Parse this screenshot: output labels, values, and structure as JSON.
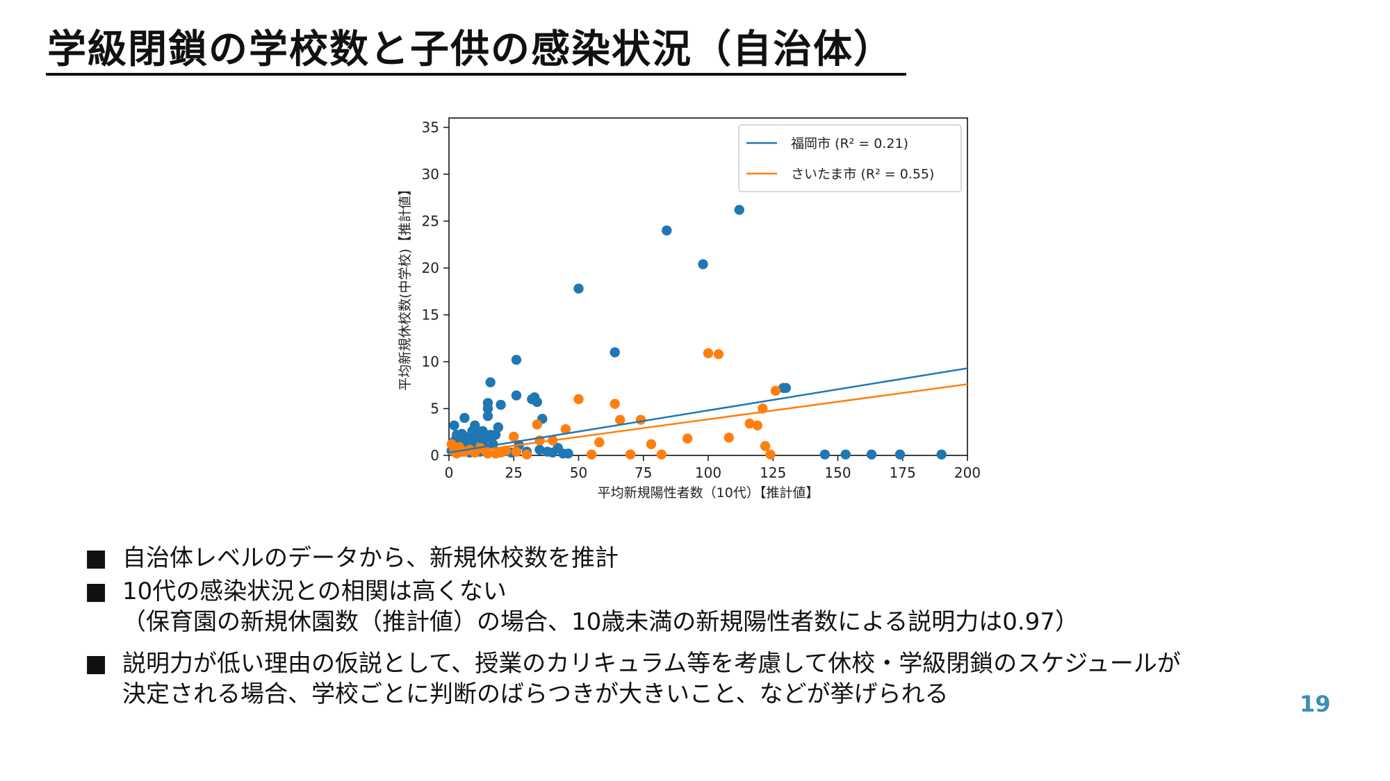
{
  "slide": {
    "title": "学級閉鎖の学校数と子供の感染状況（自治体）",
    "page_number": "19"
  },
  "colors": {
    "fukuoka": "#1f77b4",
    "saitama": "#ff7f0e",
    "accent_page_number": "#3a8fb7"
  },
  "chart_data": {
    "type": "scatter",
    "xlabel": "平均新規陽性者数（10代）【推計値】",
    "ylabel": "平均新規休校数(中学校)【推計値】",
    "xlim": [
      0,
      200
    ],
    "ylim": [
      0,
      36
    ],
    "xticks": [
      "0",
      "25",
      "50",
      "75",
      "100",
      "125",
      "150",
      "175",
      "200"
    ],
    "yticks": [
      "0",
      "5",
      "10",
      "15",
      "20",
      "25",
      "30",
      "35"
    ],
    "grid": false,
    "legend_position": "top-right",
    "legend_entries": [
      "福岡市 (R² = 0.21)",
      "さいたま市 (R² = 0.55)"
    ],
    "series": [
      {
        "name": "福岡市",
        "r2_text": "(R² = 0.21)",
        "points": [
          [
            1,
            0.5
          ],
          [
            2,
            1.5
          ],
          [
            2,
            3.2
          ],
          [
            3,
            2.2
          ],
          [
            3,
            0.8
          ],
          [
            4,
            1.2
          ],
          [
            5,
            2.3
          ],
          [
            5,
            0.4
          ],
          [
            6,
            4.0
          ],
          [
            6,
            1.8
          ],
          [
            7,
            1.0
          ],
          [
            8,
            2.0
          ],
          [
            8,
            0.3
          ],
          [
            9,
            2.6
          ],
          [
            9,
            1.2
          ],
          [
            10,
            3.2
          ],
          [
            10,
            0.6
          ],
          [
            11,
            1.9
          ],
          [
            12,
            2.3
          ],
          [
            12,
            0.4
          ],
          [
            13,
            2.6
          ],
          [
            13,
            1.3
          ],
          [
            14,
            1.8
          ],
          [
            14,
            0.8
          ],
          [
            15,
            4.2
          ],
          [
            15,
            5.0
          ],
          [
            15,
            5.6
          ],
          [
            16,
            7.8
          ],
          [
            16,
            2.2
          ],
          [
            17,
            1.2
          ],
          [
            18,
            2.2
          ],
          [
            19,
            3.0
          ],
          [
            20,
            5.4
          ],
          [
            22,
            0.5
          ],
          [
            24,
            0.3
          ],
          [
            26,
            6.4
          ],
          [
            26,
            10.2
          ],
          [
            27,
            1.1
          ],
          [
            30,
            0.4
          ],
          [
            32,
            6.0
          ],
          [
            33,
            6.2
          ],
          [
            34,
            5.7
          ],
          [
            35,
            0.6
          ],
          [
            36,
            3.9
          ],
          [
            38,
            0.4
          ],
          [
            40,
            0.3
          ],
          [
            42,
            0.8
          ],
          [
            44,
            0.2
          ],
          [
            46,
            0.2
          ],
          [
            50,
            17.8
          ],
          [
            64,
            11.0
          ],
          [
            84,
            24.0
          ],
          [
            98,
            20.4
          ],
          [
            112,
            26.2
          ],
          [
            129,
            7.2
          ],
          [
            130,
            7.2
          ],
          [
            145,
            0.1
          ],
          [
            153,
            0.1
          ],
          [
            163,
            0.1
          ],
          [
            174,
            0.1
          ],
          [
            190,
            0.1
          ]
        ],
        "fit_line": [
          [
            0,
            0.3
          ],
          [
            200,
            9.3
          ]
        ]
      },
      {
        "name": "さいたま市",
        "r2_text": "(R² = 0.55)",
        "points": [
          [
            1,
            1.2
          ],
          [
            2,
            0.6
          ],
          [
            3,
            0.2
          ],
          [
            4,
            0.9
          ],
          [
            6,
            0.4
          ],
          [
            8,
            0.6
          ],
          [
            10,
            0.3
          ],
          [
            12,
            0.8
          ],
          [
            14,
            0.5
          ],
          [
            15,
            0.2
          ],
          [
            18,
            0.2
          ],
          [
            20,
            0.3
          ],
          [
            22,
            0.5
          ],
          [
            25,
            2.0
          ],
          [
            26,
            0.4
          ],
          [
            30,
            0.1
          ],
          [
            34,
            3.3
          ],
          [
            35,
            1.6
          ],
          [
            40,
            1.6
          ],
          [
            45,
            2.8
          ],
          [
            50,
            6.0
          ],
          [
            55,
            0.1
          ],
          [
            58,
            1.4
          ],
          [
            64,
            5.5
          ],
          [
            66,
            3.8
          ],
          [
            70,
            0.1
          ],
          [
            74,
            3.8
          ],
          [
            78,
            1.2
          ],
          [
            82,
            0.1
          ],
          [
            92,
            1.8
          ],
          [
            100,
            10.9
          ],
          [
            104,
            10.8
          ],
          [
            108,
            1.9
          ],
          [
            116,
            3.4
          ],
          [
            119,
            3.2
          ],
          [
            121,
            5.0
          ],
          [
            122,
            1.0
          ],
          [
            124,
            0.1
          ],
          [
            126,
            6.9
          ]
        ],
        "fit_line": [
          [
            0,
            0.1
          ],
          [
            200,
            7.6
          ]
        ]
      }
    ]
  },
  "bullets": [
    {
      "marker": "■",
      "lines": [
        "自治体レベルのデータから、新規休校数を推計"
      ]
    },
    {
      "marker": "■",
      "lines": [
        "10代の感染状況との相関は高くない",
        "（保育園の新規休園数（推計値）の場合、10歳未満の新規陽性者数による説明力は0.97）"
      ]
    },
    {
      "marker": "■",
      "lines": [
        "説明力が低い理由の仮説として、授業のカリキュラム等を考慮して休校・学級閉鎖のスケジュールが",
        "決定される場合、学校ごとに判断のばらつきが大きいこと、などが挙げられる"
      ]
    }
  ]
}
